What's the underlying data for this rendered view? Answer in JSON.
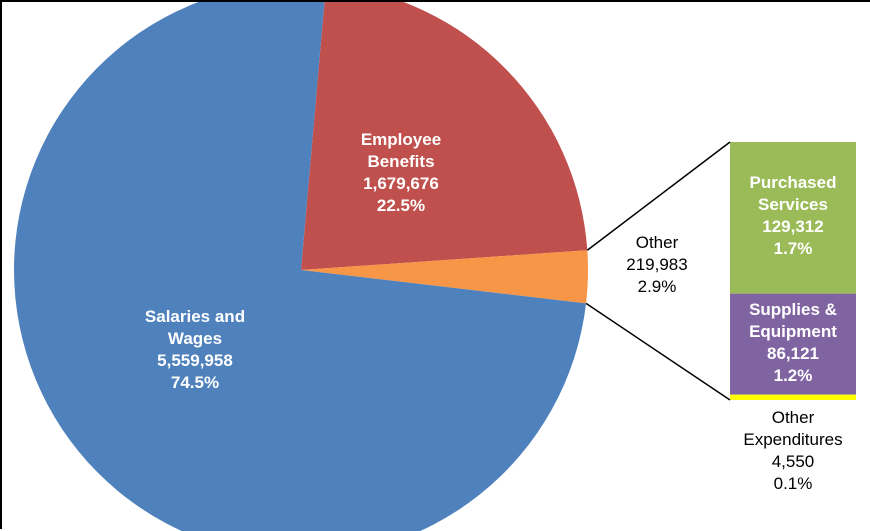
{
  "chart_data": [
    {
      "type": "pie",
      "title": "",
      "slices": [
        {
          "key": "employee_benefits",
          "lines": [
            "Employee",
            "Benefits"
          ],
          "value_text": "1,679,676",
          "pct_text": "22.5%",
          "value": 1679676,
          "pct": 22.5,
          "color": "#c0504d"
        },
        {
          "key": "other",
          "lines": [
            "Other"
          ],
          "value_text": "219,983",
          "pct_text": "2.9%",
          "value": 219983,
          "pct": 2.9,
          "color": "#f79646"
        },
        {
          "key": "salaries_wages",
          "lines": [
            "Salaries and",
            "Wages"
          ],
          "value_text": "5,559,958",
          "pct_text": "74.5%",
          "value": 5559958,
          "pct": 74.5,
          "color": "#4f81bd"
        }
      ]
    },
    {
      "type": "bar",
      "stacked": true,
      "description": "breakdown of Other",
      "segments": [
        {
          "key": "purchased_services",
          "lines": [
            "Purchased",
            "Services"
          ],
          "value_text": "129,312",
          "pct_text": "1.7%",
          "value": 129312,
          "pct": 1.7,
          "color": "#9bbb59"
        },
        {
          "key": "supplies_equipment",
          "lines": [
            "Supplies &",
            "Equipment"
          ],
          "value_text": "86,121",
          "pct_text": "1.2%",
          "value": 86121,
          "pct": 1.2,
          "color": "#8064a2"
        },
        {
          "key": "other_expenditures",
          "lines": [
            "Other",
            "Expenditures"
          ],
          "value_text": "4,550",
          "pct_text": "0.1%",
          "value": 4550,
          "pct": 0.1,
          "color": "#ffff00"
        }
      ]
    }
  ],
  "connector_color": "#000000"
}
